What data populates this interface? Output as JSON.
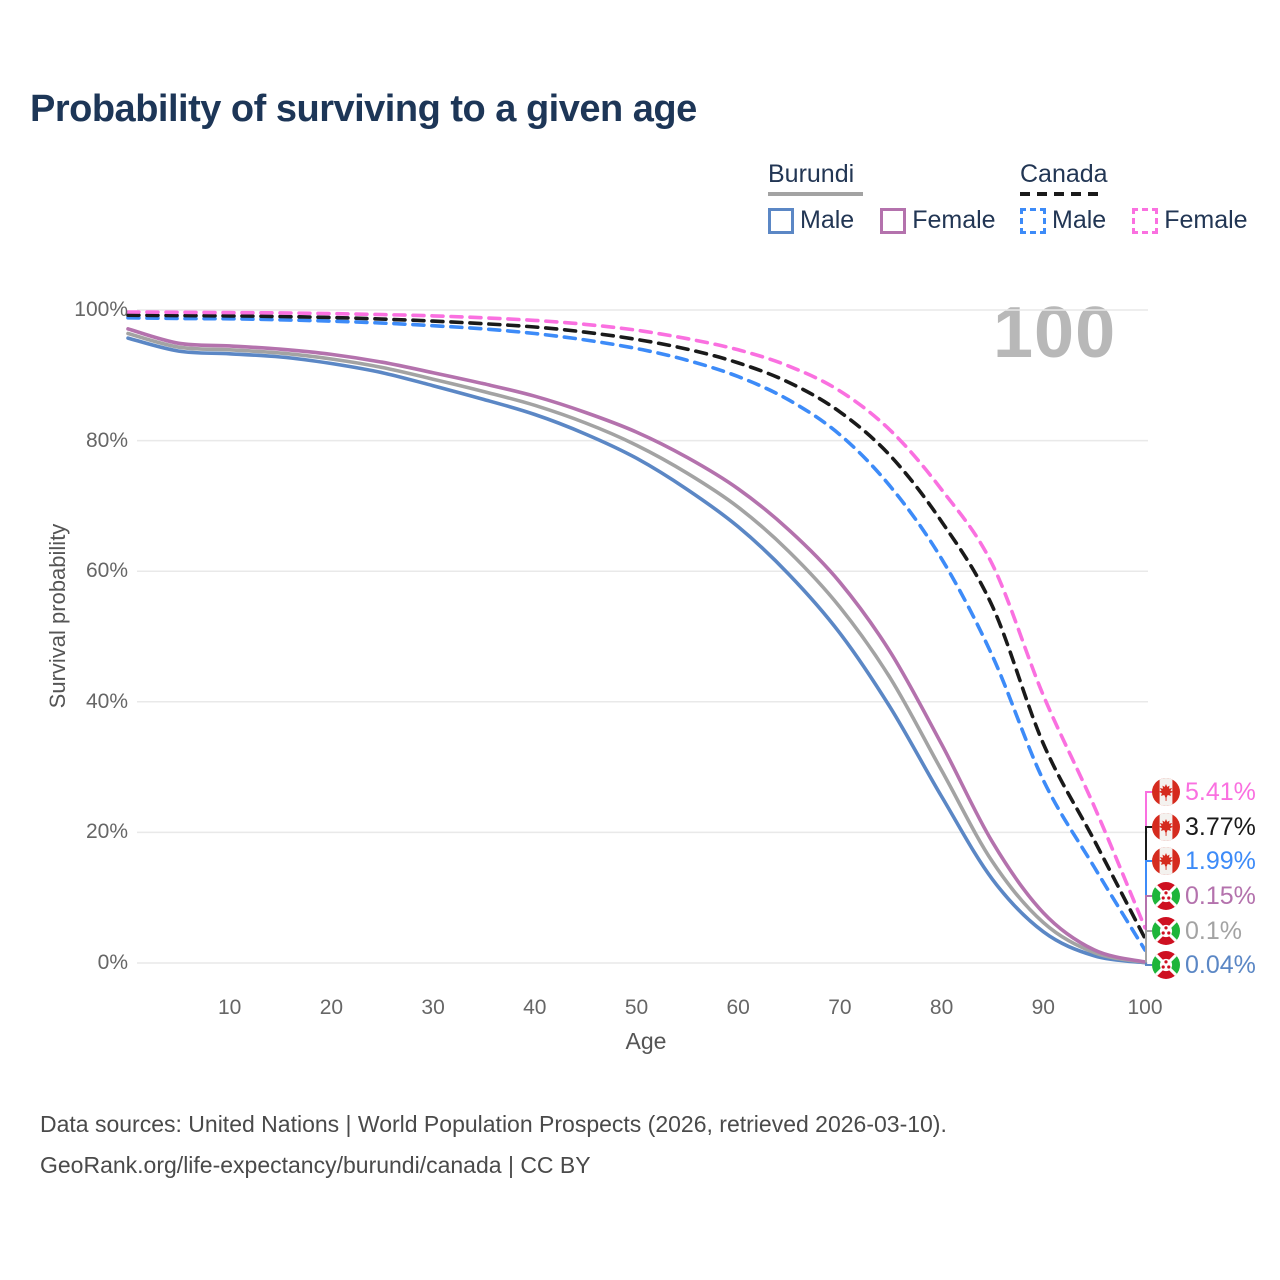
{
  "page": {
    "title": "Probability of surviving to a given age",
    "watermark_age": "100"
  },
  "legend": {
    "groups": [
      {
        "country": "Burundi",
        "underline_color": "#a3a3a3",
        "underline_dashed": false,
        "items": [
          {
            "label": "Male",
            "color": "#5b87c5",
            "dashed": false
          },
          {
            "label": "Female",
            "color": "#b472ad",
            "dashed": false
          }
        ]
      },
      {
        "country": "Canada",
        "underline_color": "#1a1a1a",
        "underline_dashed": true,
        "items": [
          {
            "label": "Male",
            "color": "#3d8bf8",
            "dashed": true
          },
          {
            "label": "Female",
            "color": "#fa70e0",
            "dashed": true
          }
        ]
      }
    ]
  },
  "chart_data": {
    "type": "line",
    "title": "Probability of surviving to a given age",
    "xlabel": "Age",
    "ylabel": "Survival probability",
    "xlim": [
      0,
      100
    ],
    "ylim": [
      0,
      100
    ],
    "grid": "horizontal",
    "x_ticks": [
      10,
      20,
      30,
      40,
      50,
      60,
      70,
      80,
      90,
      100
    ],
    "y_ticks": [
      {
        "value": 0,
        "label": "0%"
      },
      {
        "value": 20,
        "label": "20%"
      },
      {
        "value": 40,
        "label": "40%"
      },
      {
        "value": 60,
        "label": "60%"
      },
      {
        "value": 80,
        "label": "80%"
      },
      {
        "value": 100,
        "label": "100%"
      }
    ],
    "ages": [
      0,
      5,
      10,
      15,
      20,
      25,
      30,
      35,
      40,
      45,
      50,
      55,
      60,
      65,
      70,
      75,
      80,
      85,
      90,
      95,
      100
    ],
    "series": [
      {
        "id": "canada-female",
        "country": "Canada",
        "sex": "Female",
        "flag": "canada",
        "color": "#fa70e0",
        "dashed": true,
        "end_label": "5.41%",
        "values": [
          99.7,
          99.65,
          99.6,
          99.55,
          99.45,
          99.3,
          99.1,
          98.8,
          98.4,
          97.8,
          96.9,
          95.6,
          93.9,
          91.4,
          87.6,
          81.5,
          72.5,
          61.0,
          41.0,
          24.0,
          5.41
        ]
      },
      {
        "id": "canada-both",
        "country": "Canada",
        "sex": "Both sexes",
        "flag": "canada",
        "color": "#1a1a1a",
        "dashed": true,
        "end_label": "3.77%",
        "values": [
          99.2,
          99.15,
          99.1,
          99.0,
          98.85,
          98.6,
          98.3,
          97.9,
          97.4,
          96.6,
          95.5,
          94.0,
          91.9,
          88.9,
          84.4,
          77.6,
          67.6,
          54.6,
          33.6,
          18.8,
          3.77
        ]
      },
      {
        "id": "canada-male",
        "country": "Canada",
        "sex": "Male",
        "flag": "canada",
        "color": "#3d8bf8",
        "dashed": true,
        "end_label": "1.99%",
        "values": [
          98.8,
          98.7,
          98.65,
          98.5,
          98.3,
          98.0,
          97.6,
          97.1,
          96.4,
          95.4,
          94.1,
          92.3,
          89.8,
          86.2,
          80.9,
          72.9,
          61.9,
          47.0,
          28.0,
          14.7,
          1.99
        ]
      },
      {
        "id": "burundi-female",
        "country": "Burundi",
        "sex": "Female",
        "flag": "burundi",
        "color": "#b472ad",
        "dashed": false,
        "end_label": "0.15%",
        "values": [
          97.1,
          94.9,
          94.5,
          94.0,
          93.2,
          92.0,
          90.4,
          88.7,
          86.8,
          84.3,
          81.3,
          77.4,
          72.6,
          66.3,
          58.3,
          47.5,
          33.5,
          18.5,
          7.7,
          2.0,
          0.15
        ]
      },
      {
        "id": "burundi-both",
        "country": "Burundi",
        "sex": "Both sexes",
        "flag": "burundi",
        "color": "#a3a3a3",
        "dashed": false,
        "end_label": "0.1%",
        "values": [
          96.4,
          94.3,
          93.9,
          93.4,
          92.5,
          91.2,
          89.4,
          87.5,
          85.4,
          82.7,
          79.3,
          75.0,
          69.8,
          63.0,
          54.5,
          43.5,
          29.5,
          15.5,
          6.2,
          1.6,
          0.1
        ]
      },
      {
        "id": "burundi-male",
        "country": "Burundi",
        "sex": "Male",
        "flag": "burundi",
        "color": "#5b87c5",
        "dashed": false,
        "end_label": "0.04%",
        "values": [
          95.7,
          93.7,
          93.3,
          92.8,
          91.8,
          90.4,
          88.4,
          86.3,
          84.0,
          81.0,
          77.3,
          72.5,
          66.8,
          59.5,
          50.5,
          39.0,
          25.5,
          12.8,
          4.8,
          1.1,
          0.04
        ]
      }
    ],
    "watermark": "100"
  },
  "footer": {
    "line1": "Data sources: United Nations | World Population Prospects (2026, retrieved 2026-03-10).",
    "line2": "GeoRank.org/life-expectancy/burundi/canada | CC BY"
  }
}
